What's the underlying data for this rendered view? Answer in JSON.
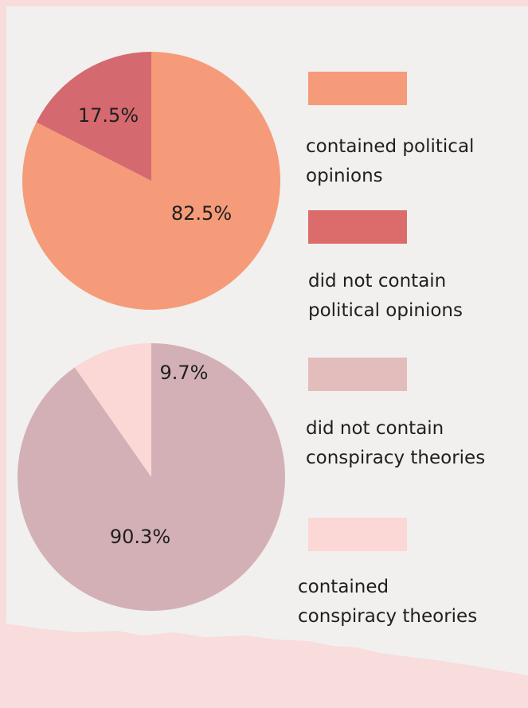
{
  "chart_data": [
    {
      "type": "pie",
      "slices": [
        {
          "label": "contained political opinions",
          "value": 82.5,
          "value_label": "82.5%",
          "color": "#f59b79"
        },
        {
          "label": "did not contain political opinions",
          "value": 17.5,
          "value_label": "17.5%",
          "color": "#d4696f"
        }
      ]
    },
    {
      "type": "pie",
      "slices": [
        {
          "label": "did not contain conspiracy theories",
          "value": 90.3,
          "value_label": "90.3%",
          "color": "#d3b0b6"
        },
        {
          "label": "contained conspiracy theories",
          "value": 9.7,
          "value_label": "9.7%",
          "color": "#fbd7d5"
        }
      ]
    }
  ],
  "legend": [
    {
      "line1": "contained political",
      "line2": "opinions",
      "color": "#f59b79"
    },
    {
      "line1": "did not contain",
      "line2": "political opinions",
      "color": "#dc6c6c"
    },
    {
      "line1": "did not contain",
      "line2": "conspiracy theories",
      "color": "#e3bcbc"
    },
    {
      "line1": "contained",
      "line2": "conspiracy theories",
      "color": "#fbd7d5"
    }
  ],
  "colors": {
    "background": "#f1f0ee",
    "border": "#f9dcdc"
  }
}
